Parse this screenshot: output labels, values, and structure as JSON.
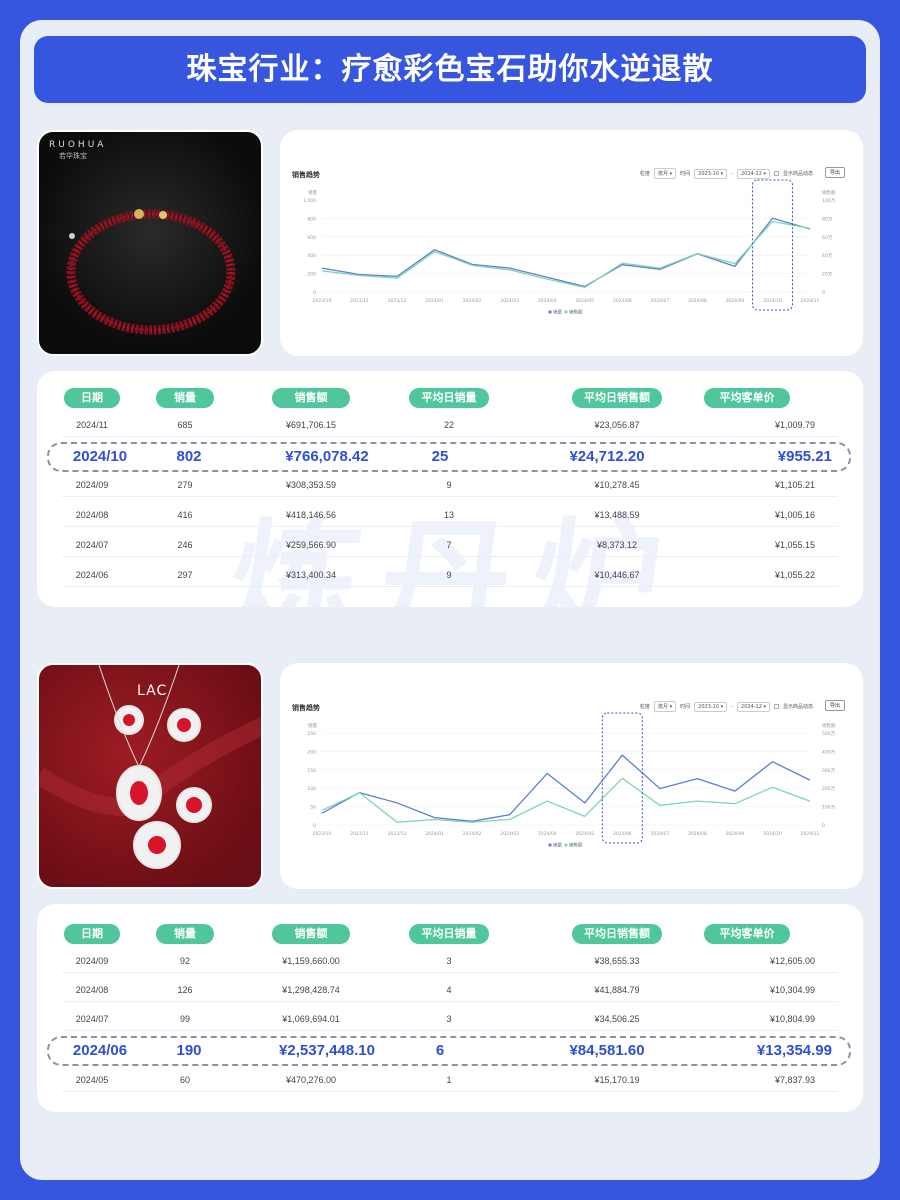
{
  "title": "珠宝行业：疗愈彩色宝石助你水逆退散",
  "table_headers": [
    "日期",
    "销量",
    "销售额",
    "平均日销量",
    "平均日销售额",
    "平均客单价"
  ],
  "section1": {
    "brand_logo": "RUOHUA",
    "brand_sub": "若华珠宝",
    "chart": {
      "title": "销售趋势",
      "filter_label": "粒度",
      "filter_value": "按月",
      "time_label": "时间",
      "time_from": "2023-10",
      "time_to": "2024-12",
      "checkbox_label": "显示商品动态",
      "export_label": "导出",
      "left_axis_unit": "销量",
      "right_axis_unit": "销售额",
      "left_ticks": [
        "1,000",
        "800",
        "600",
        "400",
        "200",
        "0"
      ],
      "right_ticks": [
        "100万",
        "80万",
        "60万",
        "40万",
        "20万",
        "0"
      ],
      "x_labels": [
        "2023/10",
        "2023/11",
        "2023/12",
        "2024/01",
        "2024/02",
        "2024/03",
        "2024/04",
        "2024/05",
        "2024/06",
        "2024/07",
        "2024/08",
        "2024/09",
        "2024/10",
        "2024/11"
      ],
      "legend": [
        "销量",
        "销售额"
      ]
    },
    "rows": [
      {
        "date": "2024/11",
        "qty": "685",
        "sales": "¥691,706.15",
        "avg_qty": "22",
        "avg_sales": "¥23,056.87",
        "avg_price": "¥1,009.79"
      },
      {
        "date": "2024/09",
        "qty": "279",
        "sales": "¥308,353.59",
        "avg_qty": "9",
        "avg_sales": "¥10,278.45",
        "avg_price": "¥1,105.21"
      },
      {
        "date": "2024/08",
        "qty": "416",
        "sales": "¥418,146.56",
        "avg_qty": "13",
        "avg_sales": "¥13,488.59",
        "avg_price": "¥1,005.16"
      },
      {
        "date": "2024/07",
        "qty": "246",
        "sales": "¥259,566.90",
        "avg_qty": "7",
        "avg_sales": "¥8,373.12",
        "avg_price": "¥1,055.15"
      },
      {
        "date": "2024/06",
        "qty": "297",
        "sales": "¥313,400.34",
        "avg_qty": "9",
        "avg_sales": "¥10,446.67",
        "avg_price": "¥1,055.22"
      }
    ],
    "highlight": {
      "date": "2024/10",
      "qty": "802",
      "sales": "¥766,078.42",
      "avg_qty": "25",
      "avg_sales": "¥24,712.20",
      "avg_price": "¥955.21"
    }
  },
  "section2": {
    "brand_logo": "LAC",
    "chart": {
      "title": "销售趋势",
      "filter_label": "粒度",
      "filter_value": "按月",
      "time_label": "时间",
      "time_from": "2023-10",
      "time_to": "2024-12",
      "checkbox_label": "显示商品动态",
      "export_label": "导出",
      "left_axis_unit": "销量",
      "right_axis_unit": "销售额",
      "left_ticks": [
        "250",
        "200",
        "150",
        "100",
        "50",
        "0"
      ],
      "right_ticks": [
        "500万",
        "400万",
        "300万",
        "200万",
        "100万",
        "0"
      ],
      "x_labels": [
        "2023/10",
        "2023/11",
        "2023/12",
        "2024/01",
        "2024/02",
        "2024/03",
        "2024/04",
        "2024/05",
        "2024/06",
        "2024/07",
        "2024/08",
        "2024/09",
        "2024/10",
        "2024/11"
      ],
      "legend": [
        "销量",
        "销售额"
      ]
    },
    "rows_top": [
      {
        "date": "2024/09",
        "qty": "92",
        "sales": "¥1,159,660.00",
        "avg_qty": "3",
        "avg_sales": "¥38,655.33",
        "avg_price": "¥12,605.00"
      },
      {
        "date": "2024/08",
        "qty": "126",
        "sales": "¥1,298,428.74",
        "avg_qty": "4",
        "avg_sales": "¥41,884.79",
        "avg_price": "¥10,304.99"
      },
      {
        "date": "2024/07",
        "qty": "99",
        "sales": "¥1,069,694.01",
        "avg_qty": "3",
        "avg_sales": "¥34,506.25",
        "avg_price": "¥10,804.99"
      }
    ],
    "highlight": {
      "date": "2024/06",
      "qty": "190",
      "sales": "¥2,537,448.10",
      "avg_qty": "6",
      "avg_sales": "¥84,581.60",
      "avg_price": "¥13,354.99"
    },
    "rows_bottom": [
      {
        "date": "2024/05",
        "qty": "60",
        "sales": "¥470,276.00",
        "avg_qty": "1",
        "avg_sales": "¥15,170.19",
        "avg_price": "¥7,837.93"
      }
    ]
  },
  "watermark": "炼丹炉",
  "colors": {
    "page_bg": "#3656e0",
    "frame_bg": "#e9edf6",
    "pill": "#4fc79a",
    "highlight_text": "#2f4fd6",
    "series_qty": "#5b7fd6",
    "series_sales": "#7fd6b0"
  },
  "chart_data": [
    {
      "type": "line",
      "x": [
        "2023/10",
        "2023/11",
        "2023/12",
        "2024/01",
        "2024/02",
        "2024/03",
        "2024/04",
        "2024/05",
        "2024/06",
        "2024/07",
        "2024/08",
        "2024/09",
        "2024/10",
        "2024/11"
      ],
      "ylim": [
        0,
        1000
      ],
      "y2lim": [
        0,
        1000000
      ],
      "series": [
        {
          "name": "销量",
          "axis": "left",
          "values": [
            260,
            190,
            170,
            460,
            300,
            260,
            160,
            60,
            297,
            246,
            416,
            279,
            802,
            685
          ]
        },
        {
          "name": "销售额",
          "axis": "right",
          "values": [
            230000,
            180000,
            150000,
            440000,
            290000,
            240000,
            140000,
            50000,
            313400,
            259567,
            418147,
            308354,
            766078,
            691706
          ]
        }
      ]
    },
    {
      "type": "line",
      "x": [
        "2023/10",
        "2023/11",
        "2023/12",
        "2024/01",
        "2024/02",
        "2024/03",
        "2024/04",
        "2024/05",
        "2024/06",
        "2024/07",
        "2024/08",
        "2024/09",
        "2024/10",
        "2024/11"
      ],
      "ylim": [
        0,
        250
      ],
      "y2lim": [
        0,
        5000000
      ],
      "series": [
        {
          "name": "销量",
          "axis": "left",
          "values": [
            32,
            88,
            60,
            20,
            10,
            28,
            140,
            60,
            190,
            99,
            126,
            92,
            172,
            122
          ]
        },
        {
          "name": "销售额",
          "axis": "right",
          "values": [
            800000,
            1750000,
            150000,
            300000,
            150000,
            300000,
            1300000,
            470276,
            2537448,
            1069694,
            1298429,
            1159660,
            2050000,
            1300000
          ]
        }
      ]
    }
  ]
}
